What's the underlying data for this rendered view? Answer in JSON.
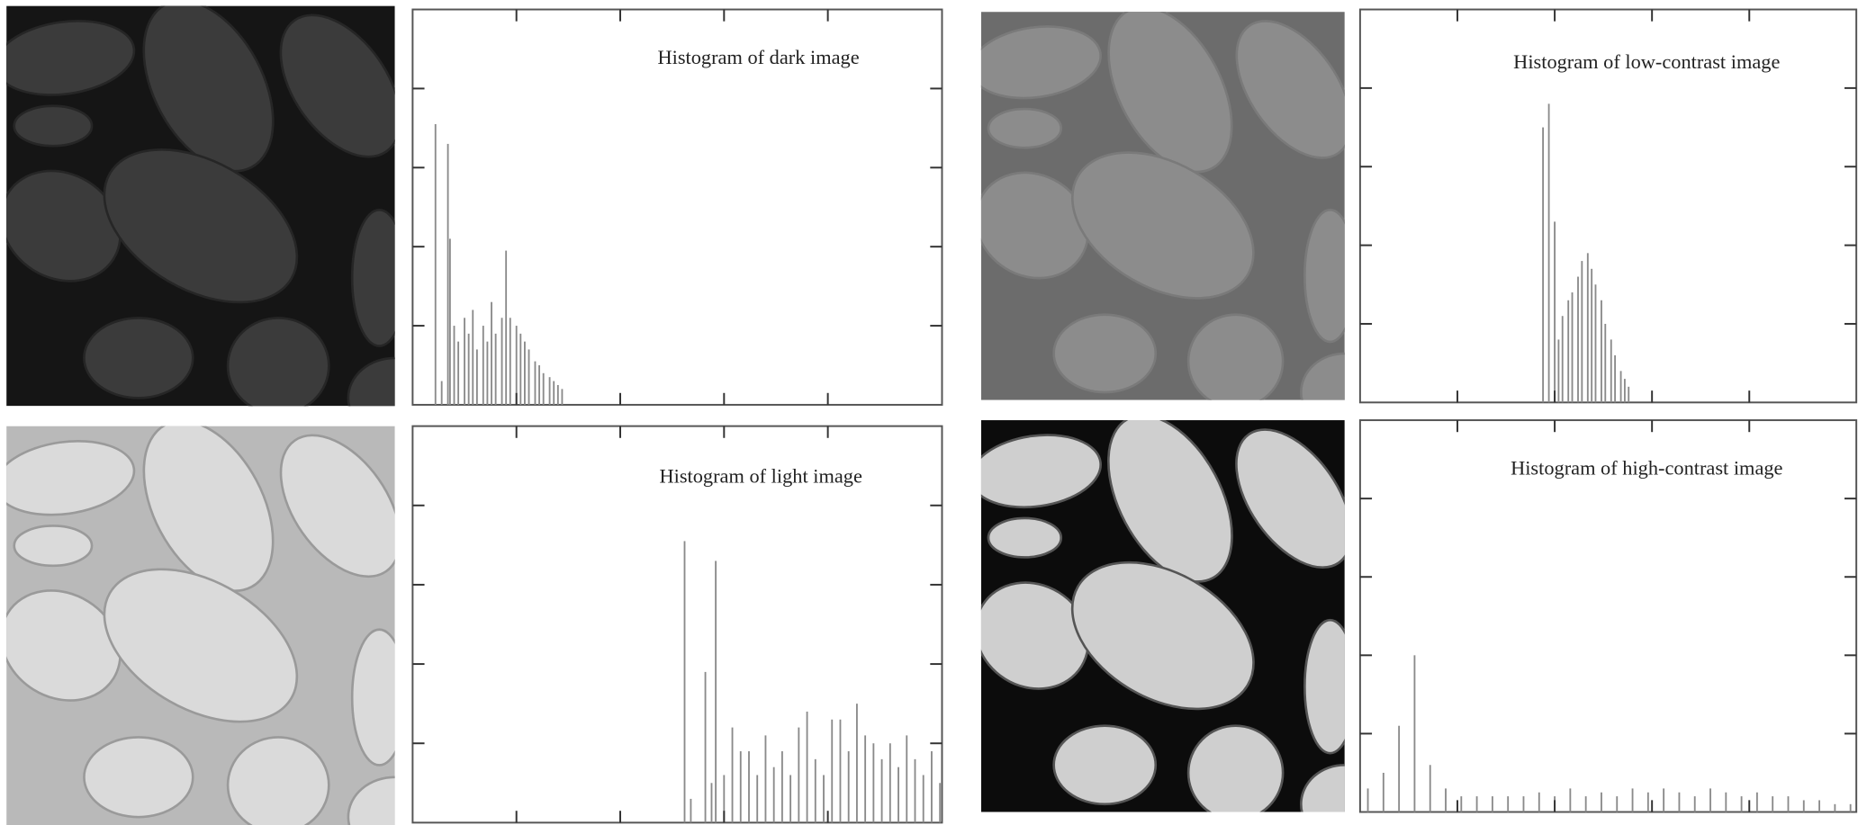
{
  "chart_data": [
    {
      "type": "bar",
      "title": "Histogram of dark image",
      "color": "#8a8a8a",
      "x": [
        11,
        14,
        17,
        18,
        20,
        22,
        25,
        27,
        29,
        31,
        34,
        36,
        38,
        40,
        43,
        45,
        47,
        50,
        52,
        54,
        56,
        59,
        61,
        63,
        66,
        68,
        70,
        72
      ],
      "values": [
        3.55,
        0.3,
        3.3,
        2.1,
        1.0,
        0.8,
        1.1,
        0.9,
        1.2,
        0.7,
        1.0,
        0.8,
        1.3,
        0.9,
        1.1,
        1.95,
        1.1,
        1.0,
        0.9,
        0.8,
        0.7,
        0.55,
        0.5,
        0.4,
        0.35,
        0.3,
        0.25,
        0.2
      ],
      "xlim": [
        0,
        255
      ],
      "ylim": [
        0,
        5
      ],
      "xticks": [
        50,
        100,
        150,
        200
      ],
      "yticks": [
        1,
        2,
        3,
        4
      ]
    },
    {
      "type": "bar",
      "title": "Histogram of light image",
      "color": "#8a8a8a",
      "x": [
        131,
        134,
        141,
        144,
        146,
        150,
        154,
        158,
        162,
        166,
        170,
        174,
        178,
        182,
        186,
        190,
        194,
        198,
        202,
        206,
        210,
        214,
        218,
        222,
        226,
        230,
        234,
        238,
        242,
        246,
        250,
        254
      ],
      "values": [
        3.55,
        0.3,
        1.9,
        0.5,
        3.3,
        0.6,
        1.2,
        0.9,
        0.9,
        0.6,
        1.1,
        0.7,
        0.9,
        0.6,
        1.2,
        1.4,
        0.8,
        0.6,
        1.3,
        1.3,
        0.9,
        1.5,
        1.1,
        1.0,
        0.8,
        1.0,
        0.7,
        1.1,
        0.8,
        0.6,
        0.9,
        0.5
      ],
      "xlim": [
        0,
        255
      ],
      "ylim": [
        0,
        5
      ],
      "xticks": [
        50,
        100,
        150,
        200
      ],
      "yticks": [
        1,
        2,
        3,
        4
      ]
    },
    {
      "type": "bar",
      "title": "Histogram of low-contrast image",
      "color": "#8a8a8a",
      "x": [
        94,
        97,
        100,
        102,
        104,
        107,
        109,
        112,
        114,
        117,
        119,
        121,
        124,
        126,
        129,
        131,
        134,
        136,
        138
      ],
      "values": [
        3.5,
        3.8,
        2.3,
        0.8,
        1.1,
        1.3,
        1.4,
        1.6,
        1.8,
        1.9,
        1.7,
        1.5,
        1.3,
        1.0,
        0.8,
        0.6,
        0.4,
        0.3,
        0.2
      ],
      "xlim": [
        0,
        255
      ],
      "ylim": [
        0,
        5
      ],
      "xticks": [
        50,
        100,
        150,
        200
      ],
      "yticks": [
        1,
        2,
        3,
        4
      ]
    },
    {
      "type": "bar",
      "title": "Histogram of high-contrast image",
      "color": "#8a8a8a",
      "x": [
        4,
        12,
        20,
        28,
        36,
        44,
        52,
        60,
        68,
        76,
        84,
        92,
        100,
        108,
        116,
        124,
        132,
        140,
        148,
        156,
        164,
        172,
        180,
        188,
        196,
        204,
        212,
        220,
        228,
        236,
        244,
        252
      ],
      "values": [
        0.3,
        0.5,
        1.1,
        2.0,
        0.6,
        0.3,
        0.2,
        0.2,
        0.2,
        0.2,
        0.2,
        0.25,
        0.2,
        0.3,
        0.2,
        0.25,
        0.2,
        0.3,
        0.25,
        0.3,
        0.25,
        0.2,
        0.3,
        0.25,
        0.2,
        0.25,
        0.2,
        0.2,
        0.15,
        0.15,
        0.1,
        0.1
      ],
      "xlim": [
        0,
        255
      ],
      "ylim": [
        0,
        5
      ],
      "xticks": [
        50,
        100,
        150,
        200
      ],
      "yticks": [
        1,
        2,
        3,
        4
      ]
    }
  ]
}
